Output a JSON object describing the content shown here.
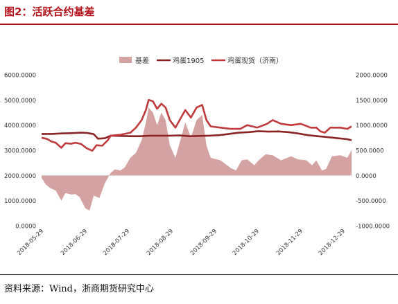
{
  "figure_title": "图2：活跃合约基差",
  "source_note": "资料来源：Wind，浙商期货研究中心",
  "chart_data": {
    "type": "line",
    "title": "",
    "legend": [
      "基差",
      "鸡蛋1905",
      "鸡蛋现货（济南）"
    ],
    "legend_position": "top",
    "grid": false,
    "x_tick_labels": [
      "2018-05-29",
      "2018-06-29",
      "2018-07-29",
      "2018-08-29",
      "2018-09-29",
      "2018-10-29",
      "2018-11-29",
      "2018-12-29"
    ],
    "x_range": [
      "2018-05-29",
      "2019-01-04"
    ],
    "left_axis": {
      "ticks": [
        "0.0000",
        "1000.0000",
        "2000.0000",
        "3000.0000",
        "4000.0000",
        "5000.0000",
        "6000.0000"
      ],
      "ylim": [
        0,
        6000
      ]
    },
    "right_axis": {
      "ticks": [
        "-1000.0000",
        "-500.0000",
        "0.0000",
        "500.0000",
        "1000.0000",
        "1500.0000",
        "2000.0000"
      ],
      "ylim": [
        -1000,
        2000
      ]
    },
    "series": [
      {
        "name": "鸡蛋1905",
        "type": "line",
        "axis": "left",
        "color": "#8b2323",
        "points": [
          [
            "2018-05-29",
            3650
          ],
          [
            "2018-06-05",
            3650
          ],
          [
            "2018-06-12",
            3670
          ],
          [
            "2018-06-19",
            3680
          ],
          [
            "2018-06-26",
            3700
          ],
          [
            "2018-06-30",
            3690
          ],
          [
            "2018-07-05",
            3640
          ],
          [
            "2018-07-08",
            3460
          ],
          [
            "2018-07-13",
            3480
          ],
          [
            "2018-07-17",
            3580
          ],
          [
            "2018-07-24",
            3570
          ],
          [
            "2018-07-31",
            3560
          ],
          [
            "2018-08-07",
            3560
          ],
          [
            "2018-08-14",
            3580
          ],
          [
            "2018-08-21",
            3580
          ],
          [
            "2018-08-28",
            3580
          ],
          [
            "2018-09-04",
            3590
          ],
          [
            "2018-09-11",
            3560
          ],
          [
            "2018-09-18",
            3570
          ],
          [
            "2018-09-25",
            3580
          ],
          [
            "2018-10-02",
            3600
          ],
          [
            "2018-10-09",
            3650
          ],
          [
            "2018-10-16",
            3700
          ],
          [
            "2018-10-23",
            3720
          ],
          [
            "2018-10-30",
            3760
          ],
          [
            "2018-11-06",
            3740
          ],
          [
            "2018-11-13",
            3750
          ],
          [
            "2018-11-20",
            3720
          ],
          [
            "2018-11-27",
            3670
          ],
          [
            "2018-12-04",
            3600
          ],
          [
            "2018-12-11",
            3560
          ],
          [
            "2018-12-18",
            3520
          ],
          [
            "2018-12-25",
            3480
          ],
          [
            "2019-01-01",
            3440
          ],
          [
            "2019-01-04",
            3400
          ]
        ]
      },
      {
        "name": "鸡蛋现货（济南）",
        "type": "line",
        "axis": "left",
        "color": "#c0393b",
        "points": [
          [
            "2018-05-29",
            3500
          ],
          [
            "2018-06-02",
            3450
          ],
          [
            "2018-06-05",
            3350
          ],
          [
            "2018-06-08",
            3300
          ],
          [
            "2018-06-12",
            3100
          ],
          [
            "2018-06-15",
            3280
          ],
          [
            "2018-06-19",
            3260
          ],
          [
            "2018-06-22",
            3300
          ],
          [
            "2018-06-26",
            3250
          ],
          [
            "2018-06-30",
            3080
          ],
          [
            "2018-07-04",
            2980
          ],
          [
            "2018-07-07",
            3200
          ],
          [
            "2018-07-11",
            3180
          ],
          [
            "2018-07-15",
            3400
          ],
          [
            "2018-07-17",
            3580
          ],
          [
            "2018-07-24",
            3620
          ],
          [
            "2018-07-31",
            3700
          ],
          [
            "2018-08-04",
            3900
          ],
          [
            "2018-08-08",
            4200
          ],
          [
            "2018-08-11",
            4600
          ],
          [
            "2018-08-13",
            5000
          ],
          [
            "2018-08-16",
            4950
          ],
          [
            "2018-08-19",
            4650
          ],
          [
            "2018-08-22",
            4850
          ],
          [
            "2018-08-25",
            4700
          ],
          [
            "2018-08-28",
            4200
          ],
          [
            "2018-09-01",
            3900
          ],
          [
            "2018-09-04",
            4200
          ],
          [
            "2018-09-08",
            4600
          ],
          [
            "2018-09-12",
            4300
          ],
          [
            "2018-09-16",
            4700
          ],
          [
            "2018-09-20",
            4800
          ],
          [
            "2018-09-23",
            4200
          ],
          [
            "2018-09-26",
            3950
          ],
          [
            "2018-10-03",
            3900
          ],
          [
            "2018-10-10",
            3850
          ],
          [
            "2018-10-17",
            3850
          ],
          [
            "2018-10-22",
            4000
          ],
          [
            "2018-10-29",
            3900
          ],
          [
            "2018-11-05",
            4050
          ],
          [
            "2018-11-09",
            4200
          ],
          [
            "2018-11-15",
            4050
          ],
          [
            "2018-11-22",
            4000
          ],
          [
            "2018-11-29",
            4050
          ],
          [
            "2018-12-06",
            3900
          ],
          [
            "2018-12-10",
            3900
          ],
          [
            "2018-12-13",
            3750
          ],
          [
            "2018-12-16",
            3700
          ],
          [
            "2018-12-20",
            3900
          ],
          [
            "2018-12-27",
            3900
          ],
          [
            "2019-01-01",
            3850
          ],
          [
            "2019-01-04",
            3950
          ]
        ]
      },
      {
        "name": "基差",
        "type": "area",
        "axis": "right",
        "color": "#d4a3a1",
        "points": [
          [
            "2018-05-29",
            -50
          ],
          [
            "2018-06-01",
            -180
          ],
          [
            "2018-06-04",
            -250
          ],
          [
            "2018-06-08",
            -300
          ],
          [
            "2018-06-12",
            -500
          ],
          [
            "2018-06-15",
            -350
          ],
          [
            "2018-06-19",
            -380
          ],
          [
            "2018-06-22",
            -370
          ],
          [
            "2018-06-25",
            -430
          ],
          [
            "2018-06-29",
            -650
          ],
          [
            "2018-07-02",
            -700
          ],
          [
            "2018-07-05",
            -400
          ],
          [
            "2018-07-09",
            -450
          ],
          [
            "2018-07-13",
            -150
          ],
          [
            "2018-07-17",
            50
          ],
          [
            "2018-07-20",
            120
          ],
          [
            "2018-07-24",
            100
          ],
          [
            "2018-07-27",
            160
          ],
          [
            "2018-07-31",
            350
          ],
          [
            "2018-08-04",
            450
          ],
          [
            "2018-08-08",
            700
          ],
          [
            "2018-08-11",
            1050
          ],
          [
            "2018-08-13",
            1350
          ],
          [
            "2018-08-16",
            1250
          ],
          [
            "2018-08-19",
            1000
          ],
          [
            "2018-08-22",
            1250
          ],
          [
            "2018-08-25",
            1100
          ],
          [
            "2018-08-28",
            600
          ],
          [
            "2018-09-01",
            350
          ],
          [
            "2018-09-04",
            650
          ],
          [
            "2018-09-08",
            1050
          ],
          [
            "2018-09-12",
            750
          ],
          [
            "2018-09-16",
            1100
          ],
          [
            "2018-09-20",
            1200
          ],
          [
            "2018-09-23",
            600
          ],
          [
            "2018-09-26",
            350
          ],
          [
            "2018-10-03",
            300
          ],
          [
            "2018-10-10",
            150
          ],
          [
            "2018-10-14",
            100
          ],
          [
            "2018-10-18",
            300
          ],
          [
            "2018-10-22",
            320
          ],
          [
            "2018-10-27",
            200
          ],
          [
            "2018-10-30",
            300
          ],
          [
            "2018-11-04",
            420
          ],
          [
            "2018-11-09",
            400
          ],
          [
            "2018-11-15",
            300
          ],
          [
            "2018-11-22",
            380
          ],
          [
            "2018-11-27",
            320
          ],
          [
            "2018-12-03",
            300
          ],
          [
            "2018-12-07",
            200
          ],
          [
            "2018-12-10",
            300
          ],
          [
            "2018-12-14",
            100
          ],
          [
            "2018-12-17",
            130
          ],
          [
            "2018-12-21",
            380
          ],
          [
            "2018-12-27",
            400
          ],
          [
            "2019-01-01",
            350
          ],
          [
            "2019-01-04",
            500
          ]
        ]
      }
    ]
  }
}
